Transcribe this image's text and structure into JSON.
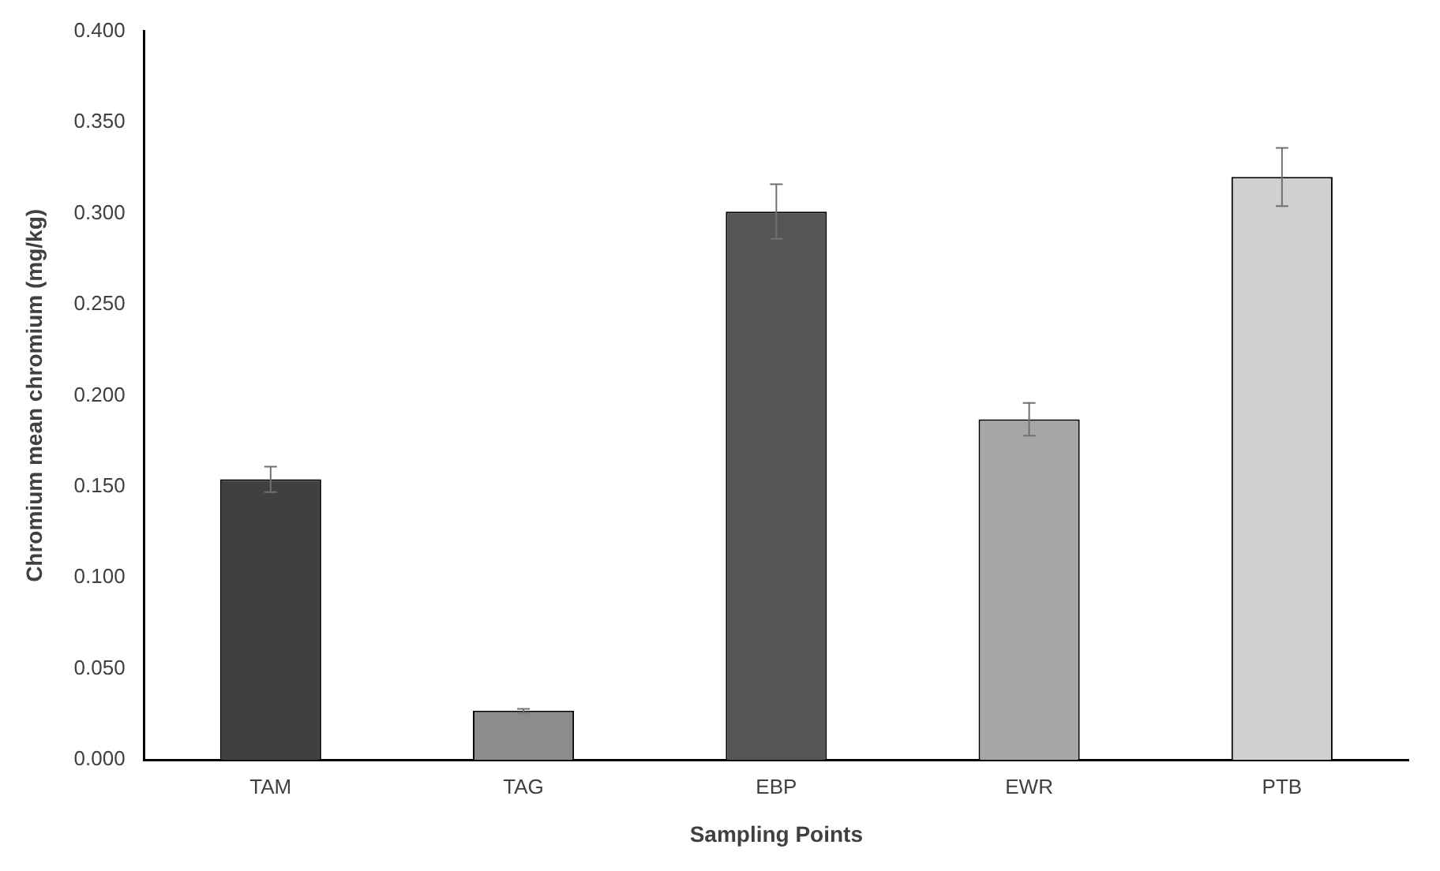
{
  "chart_data": {
    "type": "bar",
    "xlabel": "Sampling Points",
    "ylabel": "Chromium mean chromium (mg/kg)",
    "categories": [
      "TAM",
      "TAG",
      "EBP",
      "EWR",
      "PTB"
    ],
    "values": [
      0.154,
      0.027,
      0.301,
      0.187,
      0.32
    ],
    "errors": [
      0.007,
      0.001,
      0.015,
      0.009,
      0.016
    ],
    "colors": [
      "#404040",
      "#8c8c8c",
      "#555555",
      "#a6a6a6",
      "#d0d0d0"
    ],
    "ylim": [
      0,
      0.4
    ],
    "yticks": [
      {
        "value": 0,
        "label": "0.000"
      },
      {
        "value": 0.05,
        "label": "0.050"
      },
      {
        "value": 0.1,
        "label": "0.100"
      },
      {
        "value": 0.15,
        "label": "0.150"
      },
      {
        "value": 0.2,
        "label": "0.200"
      },
      {
        "value": 0.25,
        "label": "0.250"
      },
      {
        "value": 0.3,
        "label": "0.300"
      },
      {
        "value": 0.35,
        "label": "0.350"
      },
      {
        "value": 0.4,
        "label": "0.400"
      }
    ],
    "grid": false,
    "legend": false
  }
}
